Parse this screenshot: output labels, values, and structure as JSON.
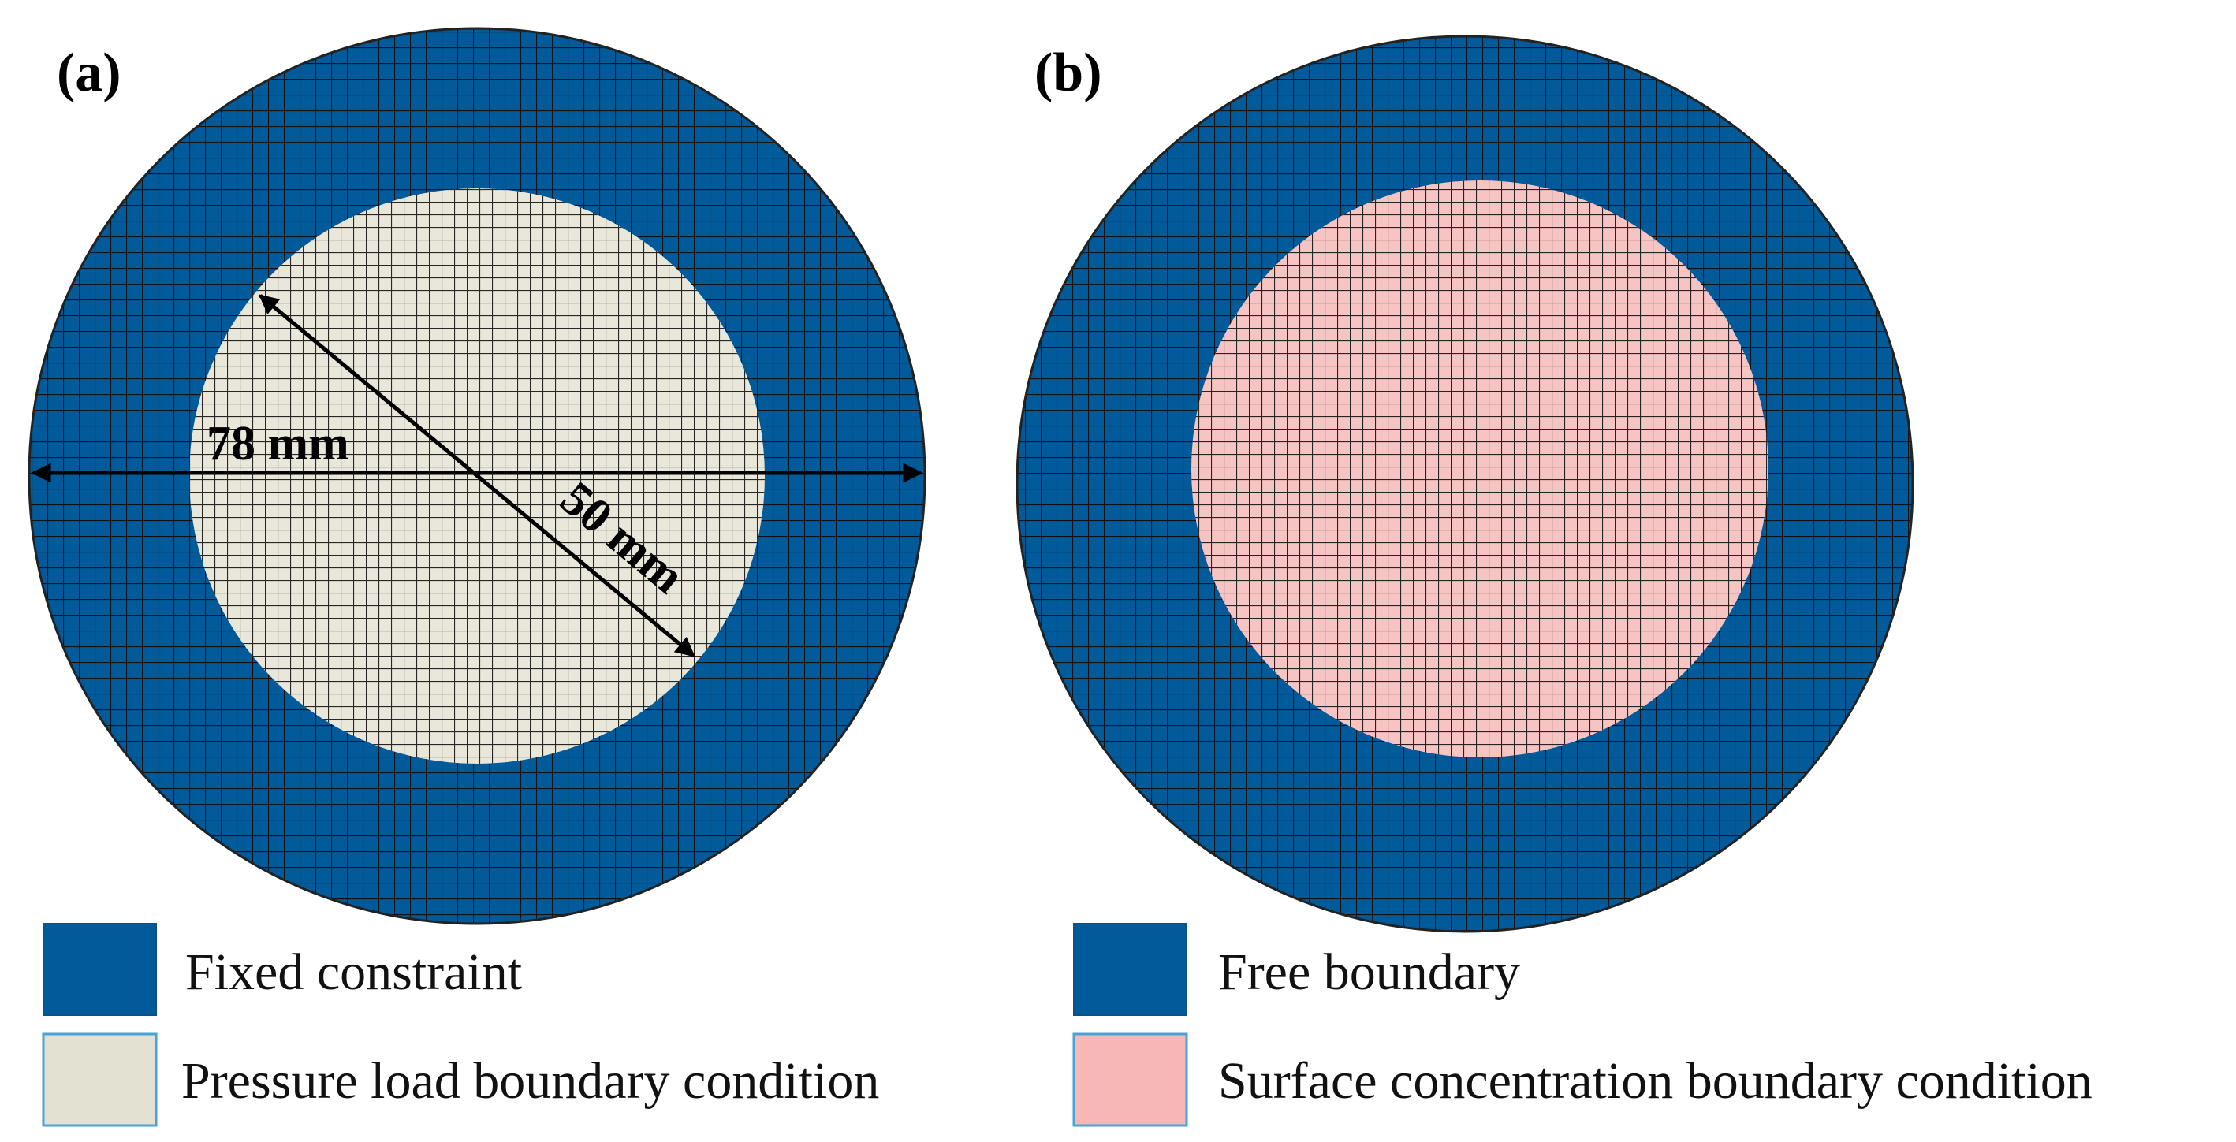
{
  "panels": [
    {
      "label": "(a)",
      "outer_color": "#015a9a",
      "inner_color": "#e9e7da",
      "dimensions": {
        "outer": "78 mm",
        "inner": "50 mm"
      },
      "legend": [
        {
          "text": "Fixed constraint",
          "swatch": "#015a9a"
        },
        {
          "text": "Pressure load boundary condition",
          "swatch": "#e2e1d2"
        }
      ]
    },
    {
      "label": "(b)",
      "outer_color": "#015a9a",
      "inner_color": "#f7c4c4",
      "legend": [
        {
          "text": "Free boundary",
          "swatch": "#015a9a"
        },
        {
          "text": "Surface concentration boundary condition",
          "swatch": "#f7b7b7"
        }
      ]
    }
  ],
  "mesh_line_color": "#111111"
}
